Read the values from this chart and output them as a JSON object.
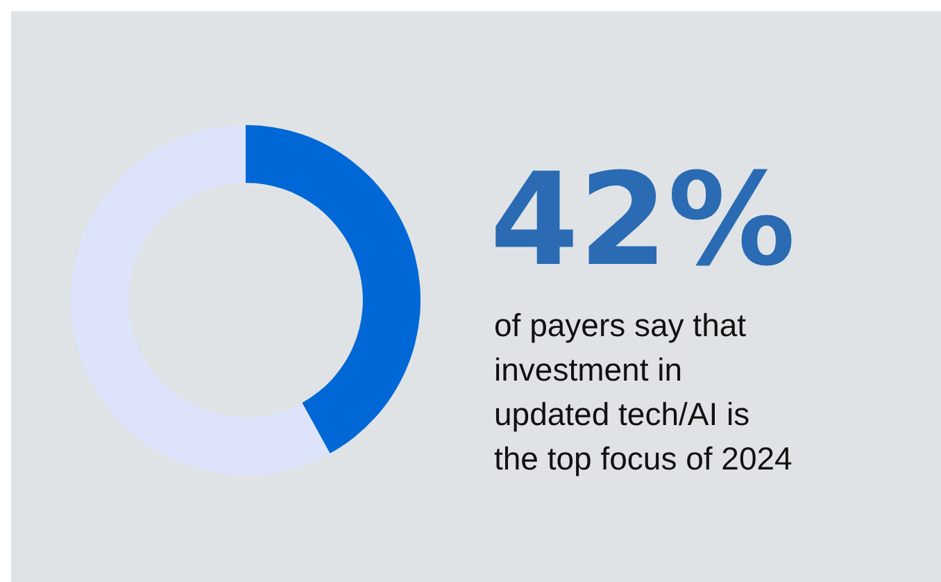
{
  "chart_data": {
    "type": "donut",
    "categories": [
      null,
      null
    ],
    "values": [
      42,
      58
    ],
    "colors": [
      "#0068d6",
      "#dde3fa"
    ],
    "value_labels": [
      "42%",
      null
    ],
    "legend": false,
    "annotations": [
      "of payers say that\ninvestment in\nupdated tech/AI is\nthe top focus of 2024"
    ]
  }
}
